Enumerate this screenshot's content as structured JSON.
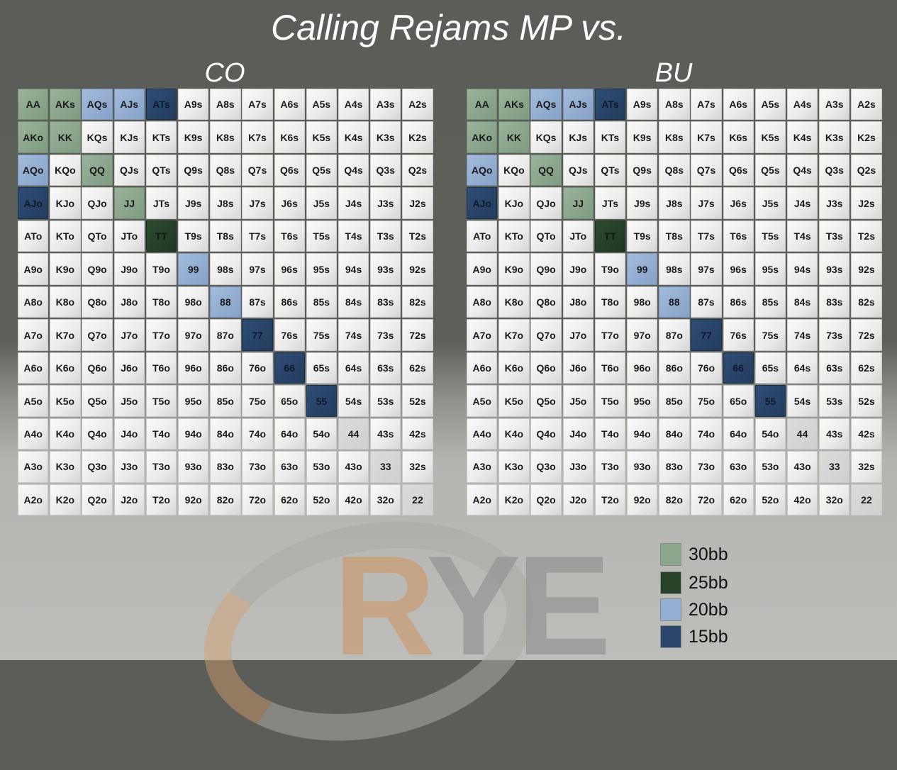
{
  "title": "Calling Rejams MP vs.",
  "colors": {
    "30bb": "#8aa68c",
    "25bb": "#264229",
    "20bb": "#93afd3",
    "15bb": "#2a466b"
  },
  "grids": [
    {
      "label": "CO",
      "rows": [
        [
          "AA",
          "AKs",
          "AQs",
          "AJs",
          "ATs",
          "A9s",
          "A8s",
          "A7s",
          "A6s",
          "A5s",
          "A4s",
          "A3s",
          "A2s"
        ],
        [
          "AKo",
          "KK",
          "KQs",
          "KJs",
          "KTs",
          "K9s",
          "K8s",
          "K7s",
          "K6s",
          "K5s",
          "K4s",
          "K3s",
          "K2s"
        ],
        [
          "AQo",
          "KQo",
          "QQ",
          "QJs",
          "QTs",
          "Q9s",
          "Q8s",
          "Q7s",
          "Q6s",
          "Q5s",
          "Q4s",
          "Q3s",
          "Q2s"
        ],
        [
          "AJo",
          "KJo",
          "QJo",
          "JJ",
          "JTs",
          "J9s",
          "J8s",
          "J7s",
          "J6s",
          "J5s",
          "J4s",
          "J3s",
          "J2s"
        ],
        [
          "ATo",
          "KTo",
          "QTo",
          "JTo",
          "TT",
          "T9s",
          "T8s",
          "T7s",
          "T6s",
          "T5s",
          "T4s",
          "T3s",
          "T2s"
        ],
        [
          "A9o",
          "K9o",
          "Q9o",
          "J9o",
          "T9o",
          "99",
          "98s",
          "97s",
          "96s",
          "95s",
          "94s",
          "93s",
          "92s"
        ],
        [
          "A8o",
          "K8o",
          "Q8o",
          "J8o",
          "T8o",
          "98o",
          "88",
          "87s",
          "86s",
          "85s",
          "84s",
          "83s",
          "82s"
        ],
        [
          "A7o",
          "K7o",
          "Q7o",
          "J7o",
          "T7o",
          "97o",
          "87o",
          "77",
          "76s",
          "75s",
          "74s",
          "73s",
          "72s"
        ],
        [
          "A6o",
          "K6o",
          "Q6o",
          "J6o",
          "T6o",
          "96o",
          "86o",
          "76o",
          "66",
          "65s",
          "64s",
          "63s",
          "62s"
        ],
        [
          "A5o",
          "K5o",
          "Q5o",
          "J5o",
          "T5o",
          "95o",
          "85o",
          "75o",
          "65o",
          "55",
          "54s",
          "53s",
          "52s"
        ],
        [
          "A4o",
          "K4o",
          "Q4o",
          "J4o",
          "T4o",
          "94o",
          "84o",
          "74o",
          "64o",
          "54o",
          "44",
          "43s",
          "42s"
        ],
        [
          "A3o",
          "K3o",
          "Q3o",
          "J3o",
          "T3o",
          "93o",
          "83o",
          "73o",
          "63o",
          "53o",
          "43o",
          "33",
          "32s"
        ],
        [
          "A2o",
          "K2o",
          "Q2o",
          "J2o",
          "T2o",
          "92o",
          "82o",
          "72o",
          "62o",
          "52o",
          "42o",
          "32o",
          "22"
        ]
      ],
      "highlights": {
        "AA": "30bb",
        "AKs": "30bb",
        "AKo": "30bb",
        "KK": "30bb",
        "QQ": "30bb",
        "JJ": "30bb",
        "TT": "25bb",
        "AQs": "20bb",
        "AJs": "20bb",
        "AQo": "20bb",
        "99": "20bb",
        "88": "20bb",
        "ATs": "15bb",
        "AJo": "15bb",
        "77": "15bb",
        "66": "15bb",
        "55": "15bb"
      }
    },
    {
      "label": "BU",
      "rows": [
        [
          "AA",
          "AKs",
          "AQs",
          "AJs",
          "ATs",
          "A9s",
          "A8s",
          "A7s",
          "A6s",
          "A5s",
          "A4s",
          "A3s",
          "A2s"
        ],
        [
          "AKo",
          "KK",
          "KQs",
          "KJs",
          "KTs",
          "K9s",
          "K8s",
          "K7s",
          "K6s",
          "K5s",
          "K4s",
          "K3s",
          "K2s"
        ],
        [
          "AQo",
          "KQo",
          "QQ",
          "QJs",
          "QTs",
          "Q9s",
          "Q8s",
          "Q7s",
          "Q6s",
          "Q5s",
          "Q4s",
          "Q3s",
          "Q2s"
        ],
        [
          "AJo",
          "KJo",
          "QJo",
          "JJ",
          "JTs",
          "J9s",
          "J8s",
          "J7s",
          "J6s",
          "J5s",
          "J4s",
          "J3s",
          "J2s"
        ],
        [
          "ATo",
          "KTo",
          "QTo",
          "JTo",
          "TT",
          "T9s",
          "T8s",
          "T7s",
          "T6s",
          "T5s",
          "T4s",
          "T3s",
          "T2s"
        ],
        [
          "A9o",
          "K9o",
          "Q9o",
          "J9o",
          "T9o",
          "99",
          "98s",
          "97s",
          "96s",
          "95s",
          "94s",
          "93s",
          "92s"
        ],
        [
          "A8o",
          "K8o",
          "Q8o",
          "J8o",
          "T8o",
          "98o",
          "88",
          "87s",
          "86s",
          "85s",
          "84s",
          "83s",
          "82s"
        ],
        [
          "A7o",
          "K7o",
          "Q7o",
          "J7o",
          "T7o",
          "97o",
          "87o",
          "77",
          "76s",
          "75s",
          "74s",
          "73s",
          "72s"
        ],
        [
          "A6o",
          "K6o",
          "Q6o",
          "J6o",
          "T6o",
          "96o",
          "86o",
          "76o",
          "66",
          "65s",
          "64s",
          "63s",
          "62s"
        ],
        [
          "A5o",
          "K5o",
          "Q5o",
          "J5o",
          "T5o",
          "95o",
          "85o",
          "75o",
          "65o",
          "55",
          "54s",
          "53s",
          "52s"
        ],
        [
          "A4o",
          "K4o",
          "Q4o",
          "J4o",
          "T4o",
          "94o",
          "84o",
          "74o",
          "64o",
          "54o",
          "44",
          "43s",
          "42s"
        ],
        [
          "A3o",
          "K3o",
          "Q3o",
          "J3o",
          "T3o",
          "93o",
          "83o",
          "73o",
          "63o",
          "53o",
          "43o",
          "33",
          "32s"
        ],
        [
          "A2o",
          "K2o",
          "Q2o",
          "J2o",
          "T2o",
          "92o",
          "82o",
          "72o",
          "62o",
          "52o",
          "42o",
          "32o",
          "22"
        ]
      ],
      "highlights": {
        "AA": "30bb",
        "AKs": "30bb",
        "AKo": "30bb",
        "KK": "30bb",
        "QQ": "30bb",
        "JJ": "30bb",
        "TT": "25bb",
        "AQs": "20bb",
        "AJs": "20bb",
        "AQo": "20bb",
        "99": "20bb",
        "88": "20bb",
        "ATs": "15bb",
        "AJo": "15bb",
        "77": "15bb",
        "66": "15bb",
        "55": "15bb"
      }
    }
  ],
  "legend": [
    {
      "label": "30bb",
      "key": "30bb"
    },
    {
      "label": "25bb",
      "key": "25bb"
    },
    {
      "label": "20bb",
      "key": "20bb"
    },
    {
      "label": "15bb",
      "key": "15bb"
    }
  ],
  "logo": {
    "text": "RYE"
  }
}
